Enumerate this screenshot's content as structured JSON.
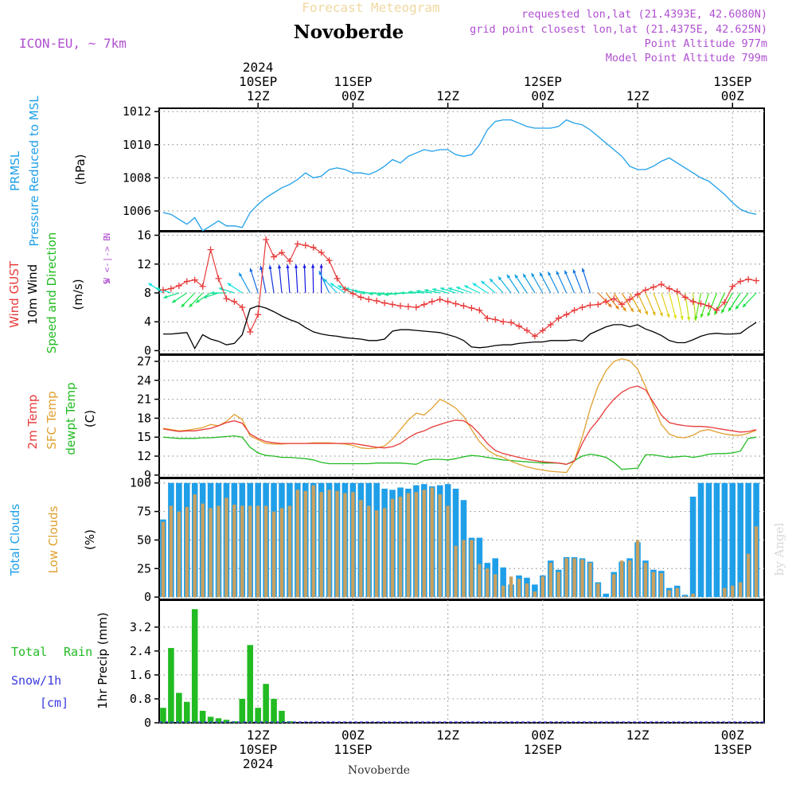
{
  "header": {
    "app_title": "Forecast Meteogram",
    "location": "Novoberde",
    "model": "ICON-EU, ~ 7km",
    "info_lines": [
      "requested lon,lat (21.4393E, 42.6080N)",
      "grid point closest lon,lat (21.4375E, 42.625N)",
      "Point Altitude 977m",
      "Model Point Altitude 799m"
    ],
    "footer_location": "Novoberde",
    "watermark": "by Angel"
  },
  "colors": {
    "pressure": "#1f9fe8",
    "gust": "#e83a3a",
    "wind": "#000000",
    "temp": "#e83a3a",
    "sfc": "#e0a030",
    "dew": "#22bb22",
    "total_clouds": "#1f9fe8",
    "low_clouds": "#c8a060",
    "rain": "#22bb22",
    "snow": "#3a3ae0",
    "purple": "#b050d0"
  },
  "time_axis": {
    "top_labels": [
      {
        "t": 12,
        "lines": [
          "2024",
          "10SEP",
          "12Z"
        ]
      },
      {
        "t": 24,
        "lines": [
          "11SEP",
          "00Z"
        ]
      },
      {
        "t": 36,
        "lines": [
          "12Z"
        ]
      },
      {
        "t": 48,
        "lines": [
          "12SEP",
          "00Z"
        ]
      },
      {
        "t": 60,
        "lines": [
          "12Z"
        ]
      },
      {
        "t": 72,
        "lines": [
          "13SEP",
          "00Z"
        ]
      }
    ],
    "bottom_labels": [
      {
        "t": 12,
        "lines": [
          "12Z",
          "10SEP",
          "2024"
        ]
      },
      {
        "t": 24,
        "lines": [
          "00Z",
          "11SEP"
        ]
      },
      {
        "t": 36,
        "lines": [
          "12Z"
        ]
      },
      {
        "t": 48,
        "lines": [
          "00Z",
          "12SEP"
        ]
      },
      {
        "t": 60,
        "lines": [
          "12Z"
        ]
      },
      {
        "t": 72,
        "lines": [
          "00Z",
          "13SEP"
        ]
      }
    ],
    "range_hours": [
      -0.5,
      76
    ]
  },
  "chart_data": [
    {
      "id": "pressure",
      "type": "line",
      "title": "PRMSL Pressure Reduced to MSL",
      "ylabel_lines": [
        "PRMSL",
        "Pressure Reduced to MSL"
      ],
      "unit": "(hPa)",
      "ylim": [
        1004.8,
        1012.2
      ],
      "yticks": [
        1006,
        1008,
        1010,
        1012
      ],
      "x": [
        0,
        1,
        2,
        3,
        4,
        5,
        6,
        7,
        8,
        9,
        10,
        11,
        12,
        13,
        14,
        15,
        16,
        17,
        18,
        19,
        20,
        21,
        22,
        23,
        24,
        25,
        26,
        27,
        28,
        29,
        30,
        31,
        32,
        33,
        34,
        35,
        36,
        37,
        38,
        39,
        40,
        41,
        42,
        43,
        44,
        45,
        46,
        47,
        48,
        49,
        50,
        51,
        52,
        53,
        54,
        55,
        56,
        57,
        58,
        59,
        60,
        61,
        62,
        63,
        64,
        65,
        66,
        67,
        68,
        69,
        70,
        71,
        72,
        73,
        74,
        75
      ],
      "values": [
        1005.9,
        1005.8,
        1005.5,
        1005.2,
        1005.6,
        1004.8,
        1005.1,
        1005.4,
        1005.1,
        1005.1,
        1005.0,
        1005.9,
        1006.4,
        1006.8,
        1007.1,
        1007.4,
        1007.6,
        1007.9,
        1008.3,
        1008.0,
        1008.1,
        1008.5,
        1008.6,
        1008.5,
        1008.3,
        1008.3,
        1008.2,
        1008.4,
        1008.7,
        1009.1,
        1008.9,
        1009.3,
        1009.5,
        1009.7,
        1009.6,
        1009.7,
        1009.7,
        1009.4,
        1009.3,
        1009.4,
        1010.0,
        1010.9,
        1011.4,
        1011.5,
        1011.5,
        1011.3,
        1011.1,
        1011.0,
        1011.0,
        1011.0,
        1011.1,
        1011.5,
        1011.3,
        1011.2,
        1010.9,
        1010.5,
        1010.1,
        1009.7,
        1009.3,
        1008.7,
        1008.5,
        1008.5,
        1008.7,
        1009.0,
        1009.2,
        1008.9,
        1008.6,
        1008.3,
        1008.0,
        1007.8,
        1007.4,
        1007.0,
        1006.5,
        1006.1,
        1005.9,
        1005.8
      ]
    },
    {
      "id": "wind",
      "type": "line",
      "title": "Wind GUST / 10m Wind Speed and Direction",
      "ylabel_gust": "Wind GUST",
      "ylabel_wind": "10m Wind",
      "ylabel_dir": "Speed and Direction",
      "unit": "(m/s)",
      "compass": [
        "N",
        "W <-|-> E",
        "S"
      ],
      "ylim": [
        -0.5,
        16.5
      ],
      "yticks": [
        0,
        4,
        8,
        12,
        16
      ],
      "x": [
        0,
        1,
        2,
        3,
        4,
        5,
        6,
        7,
        8,
        9,
        10,
        11,
        12,
        13,
        14,
        15,
        16,
        17,
        18,
        19,
        20,
        21,
        22,
        23,
        24,
        25,
        26,
        27,
        28,
        29,
        30,
        31,
        32,
        33,
        34,
        35,
        36,
        37,
        38,
        39,
        40,
        41,
        42,
        43,
        44,
        45,
        46,
        47,
        48,
        49,
        50,
        51,
        52,
        53,
        54,
        55,
        56,
        57,
        58,
        59,
        60,
        61,
        62,
        63,
        64,
        65,
        66,
        67,
        68,
        69,
        70,
        71,
        72,
        73,
        74,
        75
      ],
      "gust": [
        8.4,
        8.6,
        9.0,
        9.6,
        9.8,
        8.9,
        14.0,
        10.0,
        7.2,
        6.8,
        6.0,
        2.6,
        5.0,
        15.4,
        13.0,
        13.6,
        12.4,
        14.8,
        14.6,
        14.3,
        13.6,
        12.5,
        10.0,
        8.5,
        7.9,
        7.4,
        7.1,
        6.9,
        6.6,
        6.4,
        6.2,
        6.1,
        6.0,
        6.4,
        6.8,
        7.1,
        6.8,
        6.5,
        6.2,
        5.9,
        5.6,
        4.5,
        4.3,
        4.0,
        3.9,
        3.4,
        2.8,
        2.0,
        2.8,
        3.6,
        4.5,
        5.0,
        5.6,
        6.0,
        6.3,
        6.4,
        6.8,
        7.2,
        6.4,
        7.1,
        7.8,
        8.4,
        8.8,
        9.2,
        8.6,
        8.2,
        7.4,
        6.8,
        6.5,
        6.2,
        5.6,
        6.7,
        8.9,
        9.6,
        9.9,
        9.7
      ],
      "wind": [
        2.3,
        2.3,
        2.4,
        2.5,
        0.3,
        2.2,
        1.6,
        1.3,
        0.8,
        1.0,
        2.2,
        5.8,
        6.2,
        5.9,
        5.4,
        4.8,
        4.3,
        3.9,
        3.2,
        2.6,
        2.3,
        2.1,
        2.0,
        1.8,
        1.7,
        1.6,
        1.4,
        1.4,
        1.6,
        2.7,
        2.9,
        2.9,
        2.8,
        2.7,
        2.6,
        2.5,
        2.2,
        1.9,
        1.4,
        0.5,
        0.4,
        0.5,
        0.7,
        0.8,
        0.8,
        1.0,
        1.1,
        1.2,
        1.2,
        1.4,
        1.4,
        1.4,
        1.5,
        1.3,
        2.3,
        2.8,
        3.3,
        3.6,
        3.6,
        3.3,
        3.6,
        3.0,
        2.6,
        2.1,
        1.4,
        1.1,
        1.1,
        1.5,
        2.0,
        2.3,
        2.4,
        2.3,
        2.3,
        2.4,
        3.2,
        3.9
      ],
      "arrow_angles_deg": [
        200,
        190,
        170,
        160,
        150,
        150,
        160,
        170,
        180,
        190,
        200,
        225,
        240,
        250,
        255,
        260,
        262,
        264,
        266,
        268,
        270,
        230,
        210,
        200,
        195,
        190,
        185,
        180,
        178,
        176,
        176,
        178,
        180,
        182,
        184,
        186,
        188,
        190,
        190,
        192,
        195,
        200,
        205,
        210,
        215,
        220,
        220,
        222,
        224,
        226,
        228,
        230,
        232,
        235,
        240,
        30,
        35,
        40,
        42,
        45,
        50,
        52,
        55,
        60,
        65,
        70,
        75,
        80,
        110,
        120,
        125,
        130,
        135,
        140,
        145,
        150
      ]
    },
    {
      "id": "temperature",
      "type": "line",
      "title": "2m Temp / SFC Temp / dewpt Temp",
      "ylabel_2m": "2m Temp",
      "ylabel_sfc": "SFC Temp",
      "ylabel_dew": "dewpt Temp",
      "unit": "(C)",
      "ylim": [
        8.6,
        28.0
      ],
      "yticks": [
        9,
        12,
        15,
        18,
        21,
        24,
        27
      ],
      "x": [
        0,
        1,
        2,
        3,
        4,
        5,
        6,
        7,
        8,
        9,
        10,
        11,
        12,
        13,
        14,
        15,
        16,
        17,
        18,
        19,
        20,
        21,
        22,
        23,
        24,
        25,
        26,
        27,
        28,
        29,
        30,
        31,
        32,
        33,
        34,
        35,
        36,
        37,
        38,
        39,
        40,
        41,
        42,
        43,
        44,
        45,
        46,
        47,
        48,
        49,
        50,
        51,
        52,
        53,
        54,
        55,
        56,
        57,
        58,
        59,
        60,
        61,
        62,
        63,
        64,
        65,
        66,
        67,
        68,
        69,
        70,
        71,
        72,
        73,
        74,
        75
      ],
      "t2m": [
        16.3,
        16.1,
        15.9,
        16.0,
        16.0,
        16.2,
        16.4,
        16.8,
        17.3,
        17.6,
        17.2,
        15.5,
        14.8,
        14.3,
        14.1,
        14.0,
        14.0,
        14.0,
        14.0,
        14.0,
        14.0,
        14.0,
        14.0,
        14.0,
        14.0,
        13.8,
        13.6,
        13.4,
        13.3,
        13.5,
        14.0,
        14.9,
        15.6,
        16.0,
        16.6,
        17.0,
        17.4,
        17.7,
        17.6,
        16.8,
        15.5,
        14.0,
        12.9,
        12.4,
        12.1,
        11.8,
        11.5,
        11.3,
        11.1,
        11.0,
        10.9,
        10.7,
        11.2,
        14.0,
        16.2,
        17.7,
        19.5,
        21.0,
        22.1,
        22.8,
        23.1,
        22.5,
        20.5,
        18.5,
        17.3,
        17.0,
        16.8,
        16.7,
        16.7,
        16.6,
        16.4,
        16.2,
        16.0,
        15.8,
        15.9,
        16.2
      ],
      "sfc": [
        16.4,
        16.2,
        16.0,
        16.1,
        16.3,
        16.5,
        17.0,
        16.8,
        17.5,
        18.6,
        17.8,
        15.2,
        14.6,
        14.0,
        13.9,
        13.9,
        14.0,
        14.0,
        14.0,
        14.1,
        14.1,
        14.1,
        14.0,
        13.9,
        13.7,
        13.3,
        13.2,
        13.3,
        13.6,
        14.7,
        16.2,
        17.7,
        18.8,
        18.5,
        19.6,
        21.0,
        20.4,
        19.6,
        18.3,
        16.2,
        14.3,
        13.0,
        12.2,
        11.8,
        11.2,
        10.7,
        10.3,
        10.0,
        9.8,
        9.6,
        9.5,
        9.4,
        11.3,
        15.0,
        19.5,
        23.1,
        25.5,
        27.0,
        27.4,
        27.1,
        25.8,
        23.0,
        20.0,
        17.0,
        15.5,
        15.0,
        14.9,
        15.3,
        16.0,
        16.2,
        15.8,
        15.5,
        15.3,
        15.3,
        15.6,
        16.1
      ],
      "dew": [
        15.0,
        14.9,
        14.8,
        14.8,
        14.8,
        14.9,
        14.9,
        15.0,
        15.1,
        15.2,
        15.0,
        13.4,
        12.5,
        12.1,
        12.0,
        11.8,
        11.8,
        11.7,
        11.6,
        11.4,
        11.0,
        10.8,
        10.8,
        10.8,
        10.8,
        10.8,
        10.8,
        10.9,
        10.9,
        10.9,
        10.9,
        10.8,
        10.7,
        11.3,
        11.5,
        11.5,
        11.4,
        11.6,
        11.9,
        12.1,
        12.0,
        11.8,
        11.6,
        11.4,
        11.3,
        11.2,
        11.1,
        11.0,
        10.9,
        10.9,
        10.9,
        10.7,
        11.3,
        12.0,
        12.3,
        12.1,
        11.8,
        11.0,
        9.9,
        10.0,
        10.1,
        12.2,
        12.2,
        12.0,
        11.8,
        11.9,
        12.0,
        11.8,
        12.0,
        12.3,
        12.4,
        12.4,
        12.5,
        12.8,
        14.8,
        15.0
      ]
    },
    {
      "id": "clouds",
      "type": "bar",
      "title": "Total Clouds / Low Clouds",
      "ylabel_total": "Total Clouds",
      "ylabel_low": "Low Clouds",
      "unit": "(%)",
      "ylim": [
        -2,
        104
      ],
      "yticks": [
        0,
        25,
        50,
        75,
        100
      ],
      "x": [
        0,
        1,
        2,
        3,
        4,
        5,
        6,
        7,
        8,
        9,
        10,
        11,
        12,
        13,
        14,
        15,
        16,
        17,
        18,
        19,
        20,
        21,
        22,
        23,
        24,
        25,
        26,
        27,
        28,
        29,
        30,
        31,
        32,
        33,
        34,
        35,
        36,
        37,
        38,
        39,
        40,
        41,
        42,
        43,
        44,
        45,
        46,
        47,
        48,
        49,
        50,
        51,
        52,
        53,
        54,
        55,
        56,
        57,
        58,
        59,
        60,
        61,
        62,
        63,
        64,
        65,
        66,
        67,
        68,
        69,
        70,
        71,
        72,
        73,
        74,
        75
      ],
      "total": [
        68,
        100,
        100,
        100,
        100,
        100,
        100,
        100,
        100,
        100,
        100,
        100,
        100,
        100,
        100,
        100,
        100,
        100,
        100,
        100,
        100,
        100,
        100,
        100,
        100,
        100,
        100,
        100,
        95,
        94,
        96,
        95,
        98,
        99,
        97,
        98,
        99,
        95,
        85,
        52,
        52,
        30,
        34,
        26,
        11,
        19,
        17,
        11,
        19,
        32,
        24,
        35,
        35,
        34,
        31,
        13,
        3,
        22,
        31,
        34,
        48,
        32,
        24,
        23,
        8,
        10,
        2,
        88,
        100,
        100,
        100,
        100,
        100,
        100,
        100,
        100
      ],
      "low": [
        66,
        80,
        75,
        79,
        90,
        82,
        78,
        80,
        87,
        81,
        80,
        80,
        80,
        80,
        75,
        78,
        80,
        94,
        93,
        98,
        92,
        94,
        93,
        91,
        92,
        85,
        80,
        76,
        78,
        86,
        88,
        91,
        92,
        94,
        96,
        90,
        80,
        45,
        50,
        50,
        29,
        25,
        20,
        10,
        18,
        16,
        12,
        5,
        18,
        30,
        22,
        34,
        34,
        33,
        30,
        12,
        0,
        20,
        32,
        32,
        50,
        30,
        22,
        21,
        6,
        8,
        1,
        3,
        0,
        0,
        0,
        8,
        10,
        13,
        38,
        62
      ]
    },
    {
      "id": "precip",
      "type": "bar",
      "title": "1hr Precip (mm)",
      "ylabel": "1hr Precip (mm)",
      "legend_total": "Total",
      "legend_rain": "Rain",
      "legend_snow": "Snow/1h",
      "legend_unit": "[cm]",
      "ylim": [
        0,
        4.1
      ],
      "yticks": [
        0,
        0.8,
        1.6,
        2.4,
        3.2
      ],
      "ytick_labels": [
        "0",
        "0.8",
        "1.6",
        "2.4",
        "3.2"
      ],
      "x": [
        0,
        1,
        2,
        3,
        4,
        5,
        6,
        7,
        8,
        9,
        10,
        11,
        12,
        13,
        14,
        15,
        16,
        17,
        18,
        19,
        20,
        21,
        22,
        23,
        24,
        25,
        26,
        27,
        28,
        29,
        30,
        31,
        32,
        33,
        34,
        35,
        36,
        37,
        38,
        39,
        40,
        41,
        42,
        43,
        44,
        45,
        46,
        47,
        48,
        49,
        50,
        51,
        52,
        53,
        54,
        55,
        56,
        57,
        58,
        59,
        60,
        61,
        62,
        63,
        64,
        65,
        66,
        67,
        68,
        69,
        70,
        71,
        72,
        73,
        74,
        75
      ],
      "values": [
        0.5,
        2.5,
        1.0,
        0.7,
        3.8,
        0.4,
        0.2,
        0.15,
        0.1,
        0.05,
        0.8,
        2.6,
        0.5,
        1.3,
        0.8,
        0.4,
        0.05,
        0,
        0,
        0,
        0,
        0,
        0,
        0,
        0,
        0,
        0,
        0,
        0,
        0,
        0,
        0,
        0,
        0,
        0,
        0,
        0,
        0,
        0,
        0,
        0,
        0,
        0,
        0,
        0,
        0,
        0,
        0,
        0,
        0,
        0,
        0,
        0,
        0,
        0,
        0,
        0,
        0,
        0,
        0,
        0,
        0,
        0,
        0,
        0,
        0,
        0,
        0,
        0,
        0,
        0,
        0,
        0,
        0,
        0,
        0
      ]
    }
  ]
}
